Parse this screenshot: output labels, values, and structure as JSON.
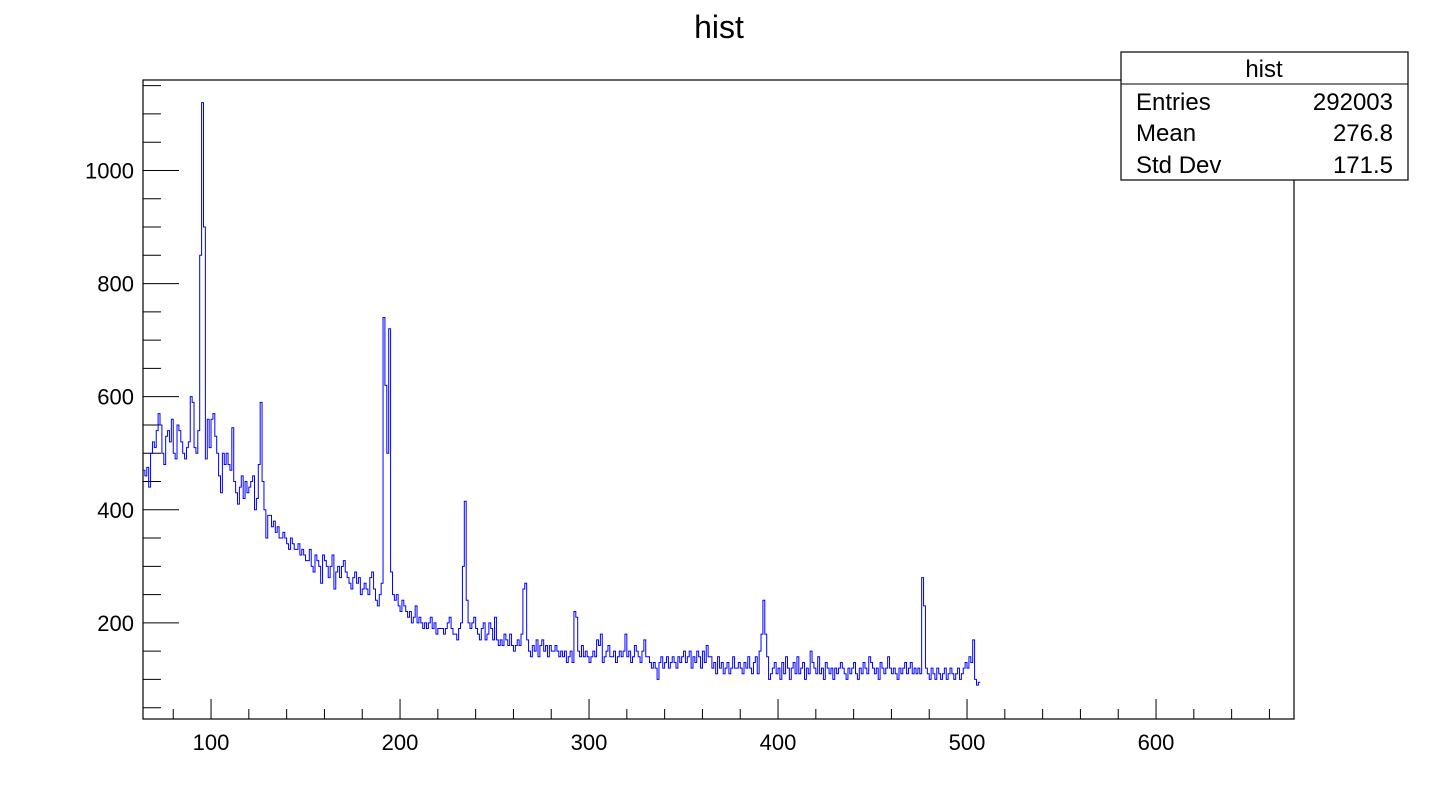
{
  "colors": {
    "line": "#0000ff",
    "frame": "#000000",
    "background": "#ffffff"
  },
  "stats_box": {
    "title": "hist",
    "rows": [
      {
        "label": "Entries",
        "value": "292003"
      },
      {
        "label": "Mean",
        "value": "276.8"
      },
      {
        "label": "Std Dev",
        "value": "171.5"
      }
    ]
  },
  "chart_data": {
    "type": "histogram",
    "title": "hist",
    "xlabel": "",
    "ylabel": "",
    "xlim": [
      64,
      673
    ],
    "ylim": [
      30,
      1160
    ],
    "bin_width": 1,
    "x_ticks": [
      100,
      200,
      300,
      400,
      500,
      600
    ],
    "y_ticks": [
      200,
      400,
      600,
      800,
      1000
    ],
    "grid": false,
    "legend": "top-right stats box",
    "x_start": 64,
    "values": [
      470,
      460,
      475,
      440,
      500,
      520,
      510,
      540,
      570,
      550,
      500,
      480,
      530,
      540,
      520,
      560,
      500,
      490,
      550,
      540,
      520,
      500,
      490,
      510,
      520,
      600,
      590,
      510,
      500,
      540,
      850,
      1120,
      900,
      490,
      560,
      510,
      560,
      570,
      530,
      500,
      460,
      430,
      500,
      480,
      500,
      480,
      470,
      545,
      450,
      430,
      410,
      440,
      460,
      420,
      450,
      430,
      440,
      450,
      460,
      400,
      420,
      480,
      590,
      450,
      400,
      350,
      390,
      390,
      370,
      380,
      360,
      370,
      350,
      350,
      360,
      350,
      340,
      330,
      350,
      340,
      330,
      330,
      340,
      320,
      330,
      320,
      310,
      310,
      330,
      300,
      290,
      320,
      310,
      300,
      270,
      320,
      310,
      300,
      280,
      300,
      320,
      260,
      290,
      300,
      280,
      300,
      310,
      290,
      280,
      270,
      260,
      280,
      290,
      270,
      280,
      250,
      260,
      270,
      260,
      250,
      280,
      290,
      260,
      240,
      230,
      250,
      270,
      740,
      620,
      500,
      720,
      290,
      250,
      240,
      250,
      230,
      220,
      240,
      230,
      220,
      210,
      220,
      200,
      210,
      230,
      200,
      210,
      200,
      190,
      200,
      190,
      200,
      210,
      190,
      200,
      180,
      190,
      190,
      190,
      180,
      190,
      200,
      210,
      190,
      180,
      180,
      170,
      190,
      200,
      300,
      415,
      240,
      200,
      190,
      200,
      210,
      190,
      180,
      170,
      190,
      200,
      170,
      180,
      200,
      190,
      170,
      210,
      170,
      160,
      170,
      160,
      180,
      170,
      160,
      180,
      160,
      150,
      160,
      170,
      160,
      180,
      260,
      270,
      170,
      150,
      140,
      160,
      150,
      170,
      140,
      160,
      170,
      150,
      160,
      140,
      160,
      150,
      150,
      160,
      150,
      140,
      150,
      140,
      150,
      130,
      140,
      150,
      130,
      220,
      210,
      150,
      140,
      160,
      140,
      150,
      140,
      130,
      140,
      150,
      140,
      170,
      160,
      180,
      130,
      140,
      150,
      160,
      140,
      140,
      150,
      130,
      140,
      150,
      140,
      150,
      180,
      140,
      150,
      130,
      140,
      160,
      150,
      140,
      130,
      150,
      170,
      140,
      140,
      130,
      120,
      130,
      120,
      100,
      130,
      140,
      120,
      130,
      140,
      120,
      130,
      140,
      130,
      120,
      140,
      130,
      140,
      150,
      130,
      140,
      150,
      120,
      140,
      130,
      150,
      140,
      120,
      150,
      130,
      160,
      140,
      140,
      120,
      130,
      110,
      140,
      120,
      130,
      110,
      120,
      130,
      110,
      120,
      140,
      120,
      120,
      130,
      120,
      110,
      130,
      120,
      140,
      120,
      110,
      130,
      140,
      110,
      150,
      180,
      240,
      180,
      140,
      100,
      110,
      120,
      130,
      110,
      120,
      100,
      130,
      110,
      140,
      120,
      100,
      120,
      130,
      110,
      140,
      110,
      120,
      130,
      100,
      120,
      110,
      150,
      130,
      120,
      110,
      140,
      110,
      120,
      100,
      130,
      120,
      110,
      120,
      100,
      120,
      110,
      120,
      130,
      120,
      110,
      100,
      120,
      110,
      120,
      130,
      110,
      100,
      120,
      110,
      130,
      120,
      110,
      140,
      130,
      120,
      110,
      120,
      100,
      130,
      120,
      110,
      120,
      140,
      120,
      110,
      120,
      110,
      100,
      120,
      110,
      120,
      130,
      110,
      120,
      130,
      110,
      120,
      110,
      120,
      110,
      280,
      230,
      120,
      110,
      100,
      120,
      110,
      100,
      120,
      110,
      100,
      110,
      120,
      100,
      110,
      120,
      110,
      100,
      110,
      120,
      100,
      110,
      120,
      130,
      120,
      140,
      130,
      170,
      100,
      90,
      95
    ]
  }
}
